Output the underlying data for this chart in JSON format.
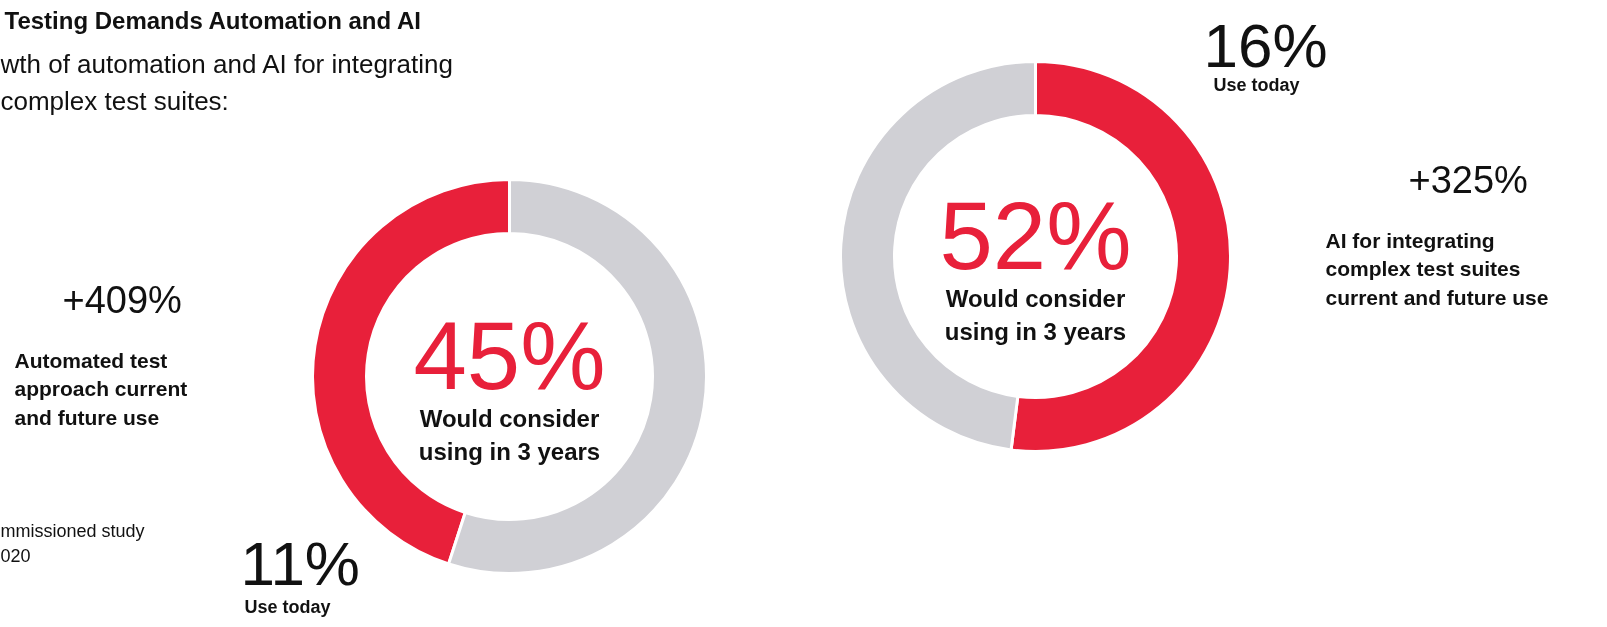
{
  "chart_data": [
    {
      "type": "donut",
      "title": "Testing Demands Automation and AI",
      "subtitle": "wth of automation and AI for integrating\n complex test suites:",
      "categories": [
        "Would consider\nusing in 3 years",
        null
      ],
      "values": [
        45,
        55
      ],
      "colors": [
        "#e8203a",
        "#d0d0d5"
      ],
      "value_labels": [
        "45%",
        null
      ],
      "annotations": [
        "+409%",
        "Automated test\napproach current\nand future use",
        "11%",
        "Use today",
        "mmissioned study\n020"
      ]
    },
    {
      "type": "donut",
      "categories": [
        "Would consider\nusing in 3 years",
        null
      ],
      "values": [
        52,
        48
      ],
      "colors": [
        "#e8203a",
        "#d0d0d5"
      ],
      "value_labels": [
        "52%",
        null
      ],
      "annotations": [
        "16%",
        "Use today",
        "+325%",
        "AI for integrating\ncomplex test suites\ncurrent and future use"
      ]
    }
  ]
}
